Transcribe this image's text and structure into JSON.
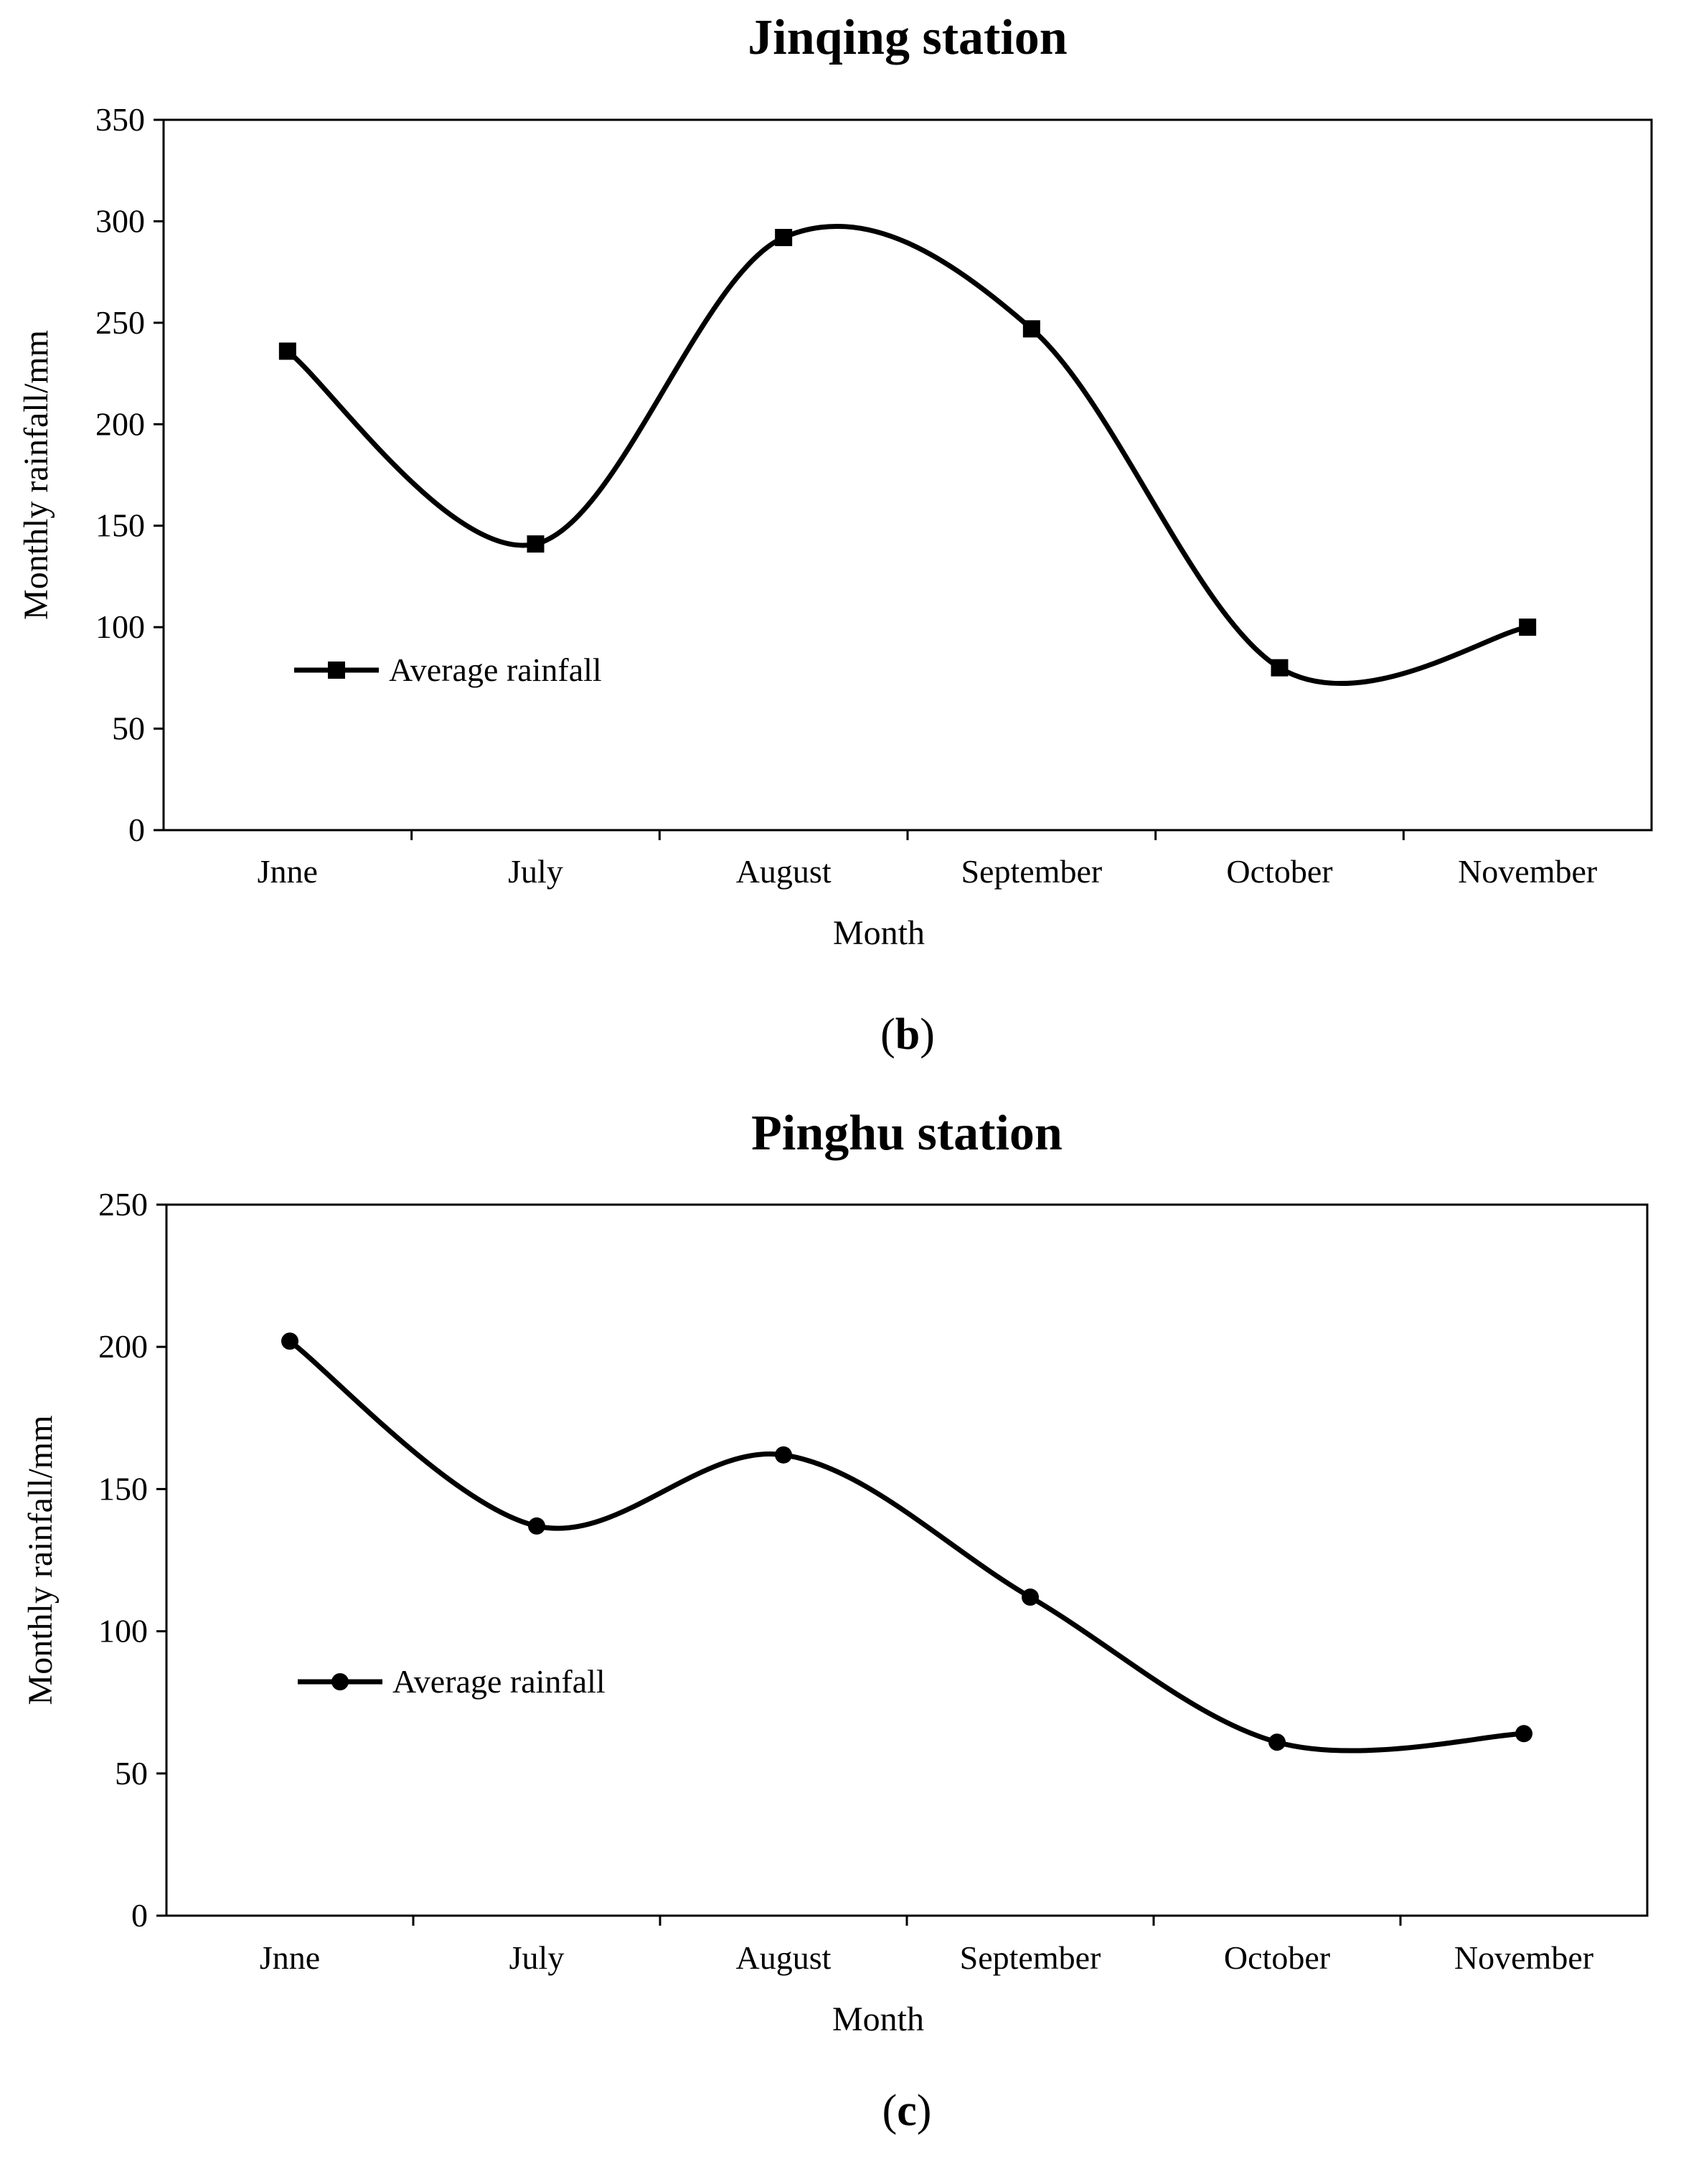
{
  "chart_data": [
    {
      "type": "line",
      "panel_label": "b",
      "title": "Jinqing station",
      "xlabel": "Month",
      "ylabel": "Monthly rainfall/mm",
      "categories": [
        "Jnne",
        "July",
        "August",
        "September",
        "October",
        "November"
      ],
      "series": [
        {
          "name": "Average rainfall",
          "marker": "square",
          "values": [
            236,
            141,
            292,
            247,
            80,
            100
          ]
        }
      ],
      "ylim": [
        0,
        350
      ],
      "yticks": [
        0,
        50,
        100,
        150,
        200,
        250,
        300,
        350
      ],
      "grid": false,
      "legend": "left-center"
    },
    {
      "type": "line",
      "panel_label": "c",
      "title": "Pinghu station",
      "xlabel": "Month",
      "ylabel": "Monthly rainfall/mm",
      "categories": [
        "Jnne",
        "July",
        "August",
        "September",
        "October",
        "November"
      ],
      "series": [
        {
          "name": "Average rainfall",
          "marker": "circle",
          "values": [
            202,
            137,
            162,
            112,
            61,
            64
          ]
        }
      ],
      "ylim": [
        0,
        250
      ],
      "yticks": [
        0,
        50,
        100,
        150,
        200,
        250
      ],
      "grid": false,
      "legend": "left-center"
    }
  ]
}
